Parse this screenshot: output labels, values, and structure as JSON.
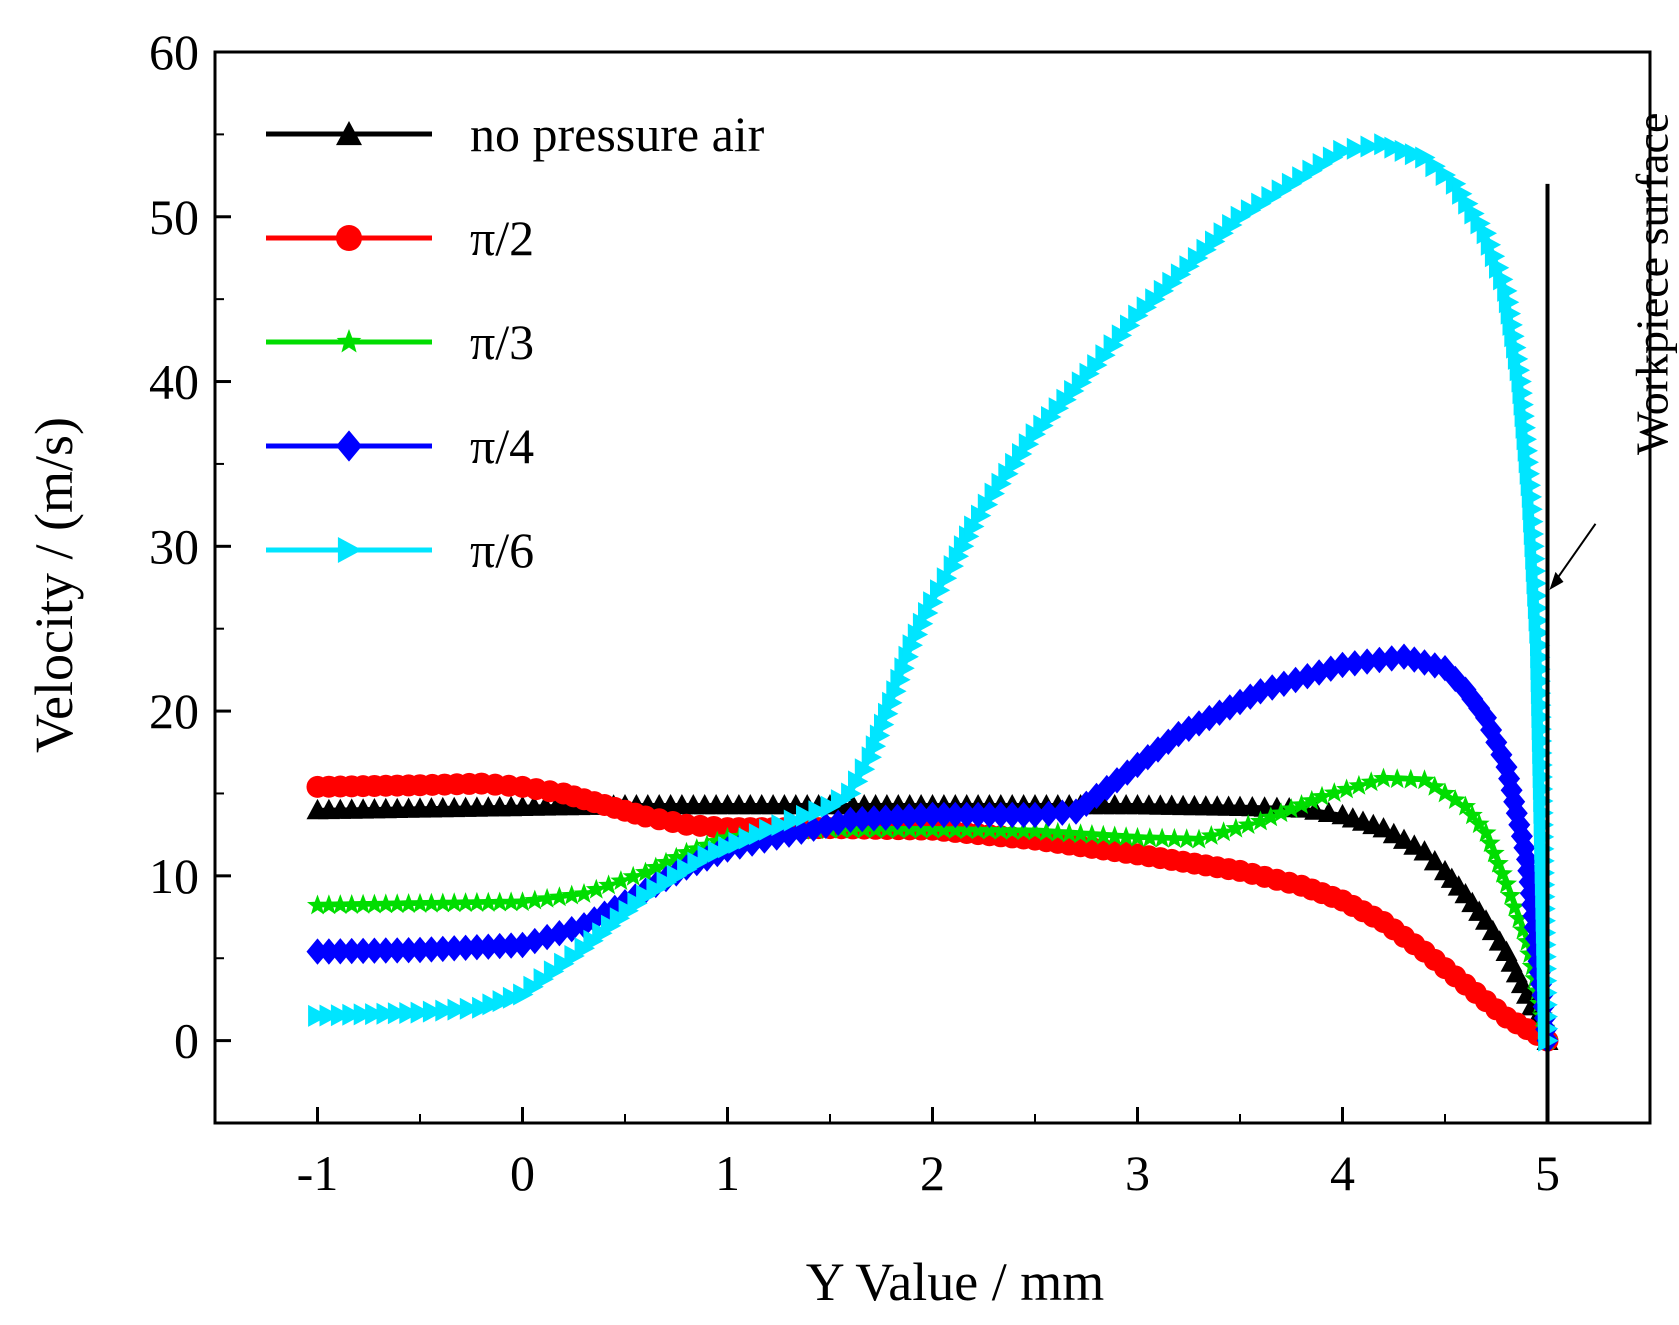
{
  "chart_data": {
    "type": "line",
    "title": "",
    "xlabel": "Y Value / mm",
    "ylabel": "Velocity / (m/s)",
    "xlim": [
      -1.5,
      5.5
    ],
    "ylim": [
      -5,
      60
    ],
    "xticks": [
      -1,
      0,
      1,
      2,
      3,
      4,
      5
    ],
    "xtick_labels": [
      "-1",
      "0",
      "1",
      "2",
      "3",
      "4",
      "5"
    ],
    "yticks": [
      0,
      10,
      20,
      30,
      40,
      50,
      60
    ],
    "ytick_labels": [
      "0",
      "10",
      "20",
      "30",
      "40",
      "50",
      "60"
    ],
    "grid": false,
    "legend_position": "top-left",
    "annotation": {
      "text": "Workpiece surface",
      "x": 5,
      "y_top": 52
    },
    "series": [
      {
        "name": "no pressure air",
        "color": "#000000",
        "marker": "triangle-up",
        "points": [
          [
            -1.0,
            14.0
          ],
          [
            -0.5,
            14.1
          ],
          [
            0.0,
            14.2
          ],
          [
            0.5,
            14.3
          ],
          [
            1.0,
            14.3
          ],
          [
            1.5,
            14.3
          ],
          [
            2.0,
            14.3
          ],
          [
            2.5,
            14.3
          ],
          [
            3.0,
            14.3
          ],
          [
            3.5,
            14.2
          ],
          [
            3.8,
            14.1
          ],
          [
            4.0,
            13.7
          ],
          [
            4.2,
            12.9
          ],
          [
            4.4,
            11.5
          ],
          [
            4.5,
            10.3
          ],
          [
            4.6,
            8.9
          ],
          [
            4.7,
            7.3
          ],
          [
            4.8,
            5.4
          ],
          [
            4.9,
            2.8
          ],
          [
            5.0,
            0.0
          ]
        ]
      },
      {
        "name": "π/2",
        "color": "#ff0000",
        "marker": "circle",
        "points": [
          [
            -1.0,
            15.4
          ],
          [
            -0.5,
            15.5
          ],
          [
            -0.2,
            15.6
          ],
          [
            0.0,
            15.4
          ],
          [
            0.2,
            15.0
          ],
          [
            0.4,
            14.3
          ],
          [
            0.6,
            13.6
          ],
          [
            0.8,
            13.1
          ],
          [
            1.0,
            12.9
          ],
          [
            1.5,
            12.9
          ],
          [
            2.0,
            12.8
          ],
          [
            2.5,
            12.2
          ],
          [
            3.0,
            11.3
          ],
          [
            3.5,
            10.3
          ],
          [
            3.8,
            9.4
          ],
          [
            4.0,
            8.5
          ],
          [
            4.2,
            7.2
          ],
          [
            4.4,
            5.4
          ],
          [
            4.6,
            3.4
          ],
          [
            4.8,
            1.4
          ],
          [
            5.0,
            0.0
          ]
        ]
      },
      {
        "name": "π/3",
        "color": "#00dd00",
        "marker": "star",
        "points": [
          [
            -1.0,
            8.2
          ],
          [
            -0.5,
            8.3
          ],
          [
            0.0,
            8.4
          ],
          [
            0.3,
            8.9
          ],
          [
            0.6,
            10.2
          ],
          [
            0.8,
            11.4
          ],
          [
            1.0,
            12.3
          ],
          [
            1.3,
            12.7
          ],
          [
            1.5,
            12.8
          ],
          [
            2.0,
            12.8
          ],
          [
            2.5,
            12.7
          ],
          [
            3.0,
            12.3
          ],
          [
            3.3,
            12.2
          ],
          [
            3.6,
            13.3
          ],
          [
            3.9,
            14.8
          ],
          [
            4.2,
            15.9
          ],
          [
            4.4,
            15.8
          ],
          [
            4.6,
            14.2
          ],
          [
            4.7,
            12.6
          ],
          [
            4.8,
            9.5
          ],
          [
            4.9,
            6.0
          ],
          [
            5.0,
            0.0
          ]
        ]
      },
      {
        "name": "π/4",
        "color": "#0000ff",
        "marker": "diamond",
        "points": [
          [
            -1.0,
            5.4
          ],
          [
            -0.5,
            5.5
          ],
          [
            0.0,
            5.8
          ],
          [
            0.3,
            7.0
          ],
          [
            0.6,
            9.1
          ],
          [
            0.8,
            10.5
          ],
          [
            1.0,
            11.6
          ],
          [
            1.3,
            12.5
          ],
          [
            1.6,
            13.4
          ],
          [
            2.0,
            13.7
          ],
          [
            2.5,
            13.7
          ],
          [
            2.7,
            13.9
          ],
          [
            2.9,
            15.8
          ],
          [
            3.2,
            18.6
          ],
          [
            3.6,
            21.2
          ],
          [
            4.0,
            22.8
          ],
          [
            4.3,
            23.3
          ],
          [
            4.5,
            22.6
          ],
          [
            4.6,
            21.3
          ],
          [
            4.7,
            19.6
          ],
          [
            4.8,
            16.6
          ],
          [
            4.9,
            11.0
          ],
          [
            4.95,
            5.5
          ],
          [
            5.0,
            0.0
          ]
        ]
      },
      {
        "name": "π/6",
        "color": "#00e5ff",
        "marker": "triangle-right",
        "points": [
          [
            -1.0,
            1.5
          ],
          [
            -0.5,
            1.7
          ],
          [
            -0.2,
            2.0
          ],
          [
            0.0,
            2.8
          ],
          [
            0.3,
            5.6
          ],
          [
            0.6,
            8.8
          ],
          [
            0.9,
            11.2
          ],
          [
            1.2,
            12.8
          ],
          [
            1.5,
            14.2
          ],
          [
            1.6,
            15.0
          ],
          [
            1.7,
            17.2
          ],
          [
            1.8,
            20.5
          ],
          [
            1.9,
            24.0
          ],
          [
            2.0,
            26.6
          ],
          [
            2.1,
            28.8
          ],
          [
            2.2,
            31.2
          ],
          [
            2.3,
            33.2
          ],
          [
            2.5,
            36.8
          ],
          [
            2.8,
            41.0
          ],
          [
            3.0,
            44.0
          ],
          [
            3.5,
            50.0
          ],
          [
            4.0,
            54.0
          ],
          [
            4.2,
            54.4
          ],
          [
            4.4,
            53.6
          ],
          [
            4.55,
            52.0
          ],
          [
            4.7,
            49.0
          ],
          [
            4.8,
            45.5
          ],
          [
            4.87,
            40.0
          ],
          [
            4.92,
            33.0
          ],
          [
            4.96,
            24.0
          ],
          [
            5.0,
            0.0
          ]
        ]
      }
    ]
  }
}
